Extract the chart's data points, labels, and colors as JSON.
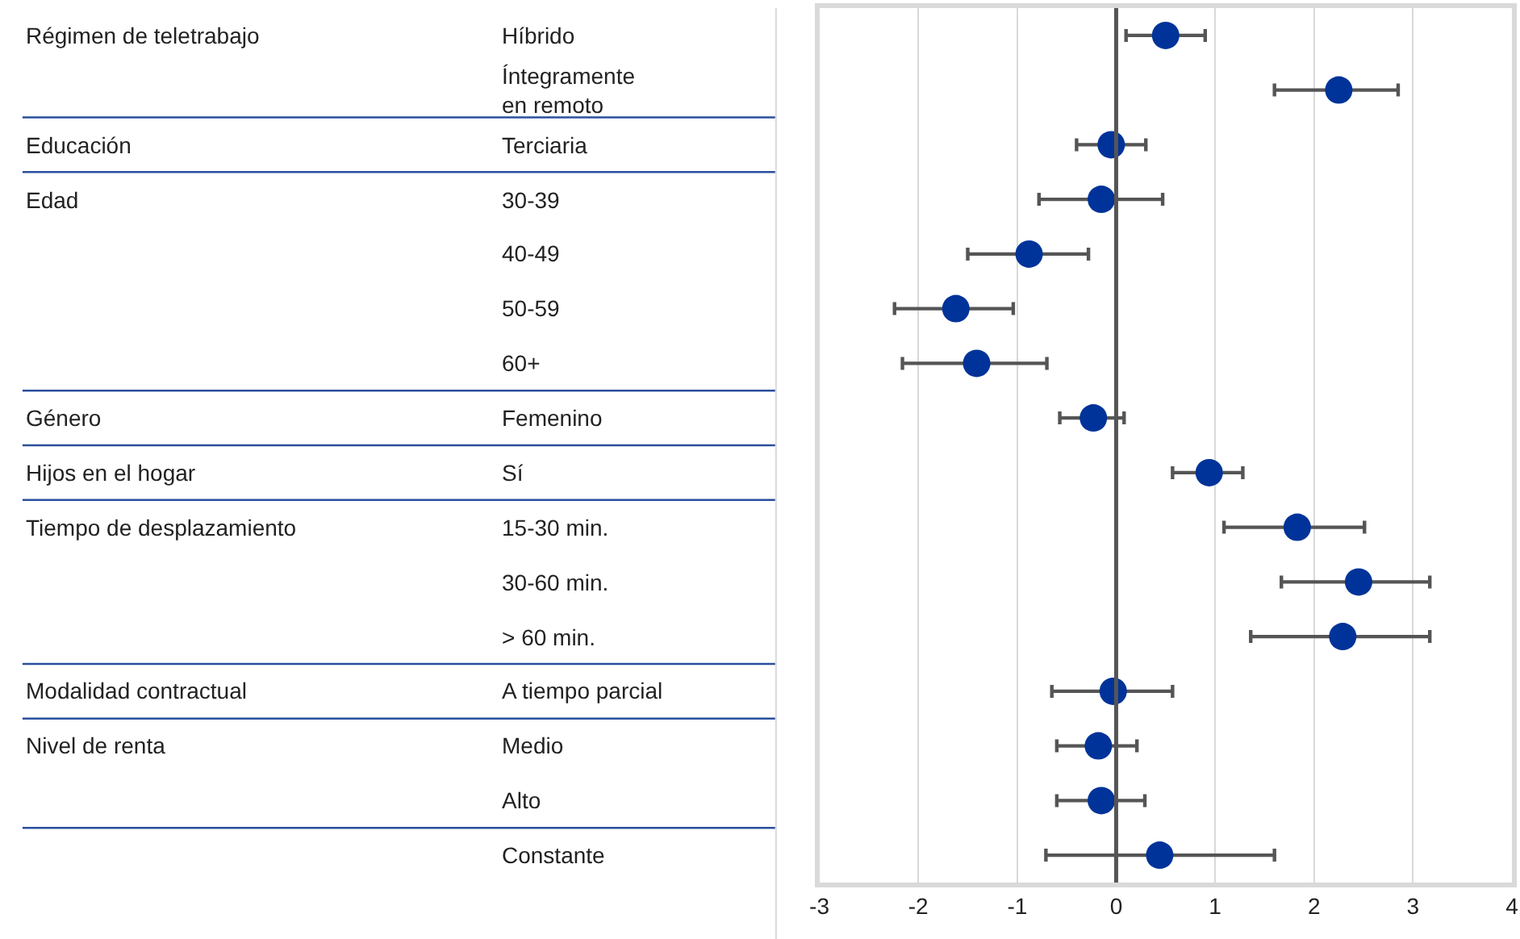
{
  "chart_data": {
    "type": "scatter",
    "orientation": "horizontal",
    "categories": [
      "Híbrido",
      "Íntegramente\nen remoto",
      "Terciaria",
      "30-39",
      "40-49",
      "50-59",
      "60+",
      "Femenino",
      "Sí",
      "15-30 min.",
      "30-60 min.",
      "> 60 min.",
      "A tiempo parcial",
      "Medio",
      "Alto",
      "Constante"
    ],
    "values": [
      0.5,
      2.25,
      -0.05,
      -0.15,
      -0.88,
      -1.62,
      -1.41,
      -0.23,
      0.94,
      1.83,
      2.45,
      2.29,
      -0.03,
      -0.18,
      -0.15,
      0.44
    ],
    "errors": [
      [
        0.1,
        0.9
      ],
      [
        1.6,
        2.85
      ],
      [
        -0.4,
        0.3
      ],
      [
        -0.78,
        0.47
      ],
      [
        -1.5,
        -0.28
      ],
      [
        -2.24,
        -1.04
      ],
      [
        -2.16,
        -0.7
      ],
      [
        -0.57,
        0.08
      ],
      [
        0.57,
        1.28
      ],
      [
        1.09,
        2.51
      ],
      [
        1.67,
        3.17
      ],
      [
        1.36,
        3.17
      ],
      [
        -0.65,
        0.57
      ],
      [
        -0.6,
        0.21
      ],
      [
        -0.6,
        0.29
      ],
      [
        -0.71,
        1.6
      ]
    ],
    "color": "#003399",
    "marker": "circle",
    "xlim": [
      -3,
      4
    ],
    "xticks": [
      -3,
      -2,
      -1,
      0,
      1,
      2,
      3,
      4
    ],
    "grid": "x",
    "tick_labels": "x",
    "ref_lines": [
      {
        "axis": "x",
        "value": 0,
        "color": "#555555"
      }
    ],
    "y2_categories": [
      "Régimen de teletrabajo",
      null,
      "Educación",
      "Edad",
      null,
      null,
      null,
      "Género",
      "Hijos en el hogar",
      "Tiempo de desplazamiento",
      null,
      null,
      "Modalidad contractual",
      "Nivel de renta",
      null,
      null
    ]
  }
}
